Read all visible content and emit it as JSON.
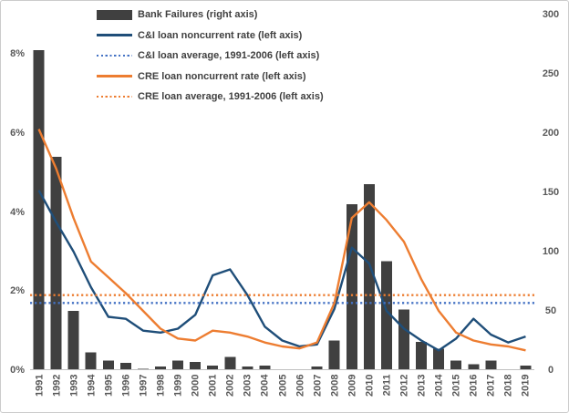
{
  "window": {
    "background": "#FFFFFF",
    "frame_border_color": "#CBCBCB",
    "axis_line_color": "#BFBFBF",
    "axis_text_color": "#595959",
    "legend_text_color": "#404040"
  },
  "legend": {
    "position": "top-left",
    "items": [
      {
        "id": "bank-failures",
        "label": "Bank Failures (right axis)",
        "swatch": "bar",
        "color": "#404040"
      },
      {
        "id": "ci-noncurrent",
        "label": "C&I loan noncurrent rate (left axis)",
        "swatch": "line",
        "color": "#1F4E79"
      },
      {
        "id": "ci-average",
        "label": "C&I loan average, 1991-2006 (left axis)",
        "swatch": "dotted",
        "color": "#4472C4"
      },
      {
        "id": "cre-noncurrent",
        "label": "CRE loan noncurrent rate (left axis)",
        "swatch": "line",
        "color": "#ED7D31"
      },
      {
        "id": "cre-average",
        "label": "CRE loan average, 1991-2006 (left axis)",
        "swatch": "dotted",
        "color": "#ED7D31"
      }
    ]
  },
  "chart_data": {
    "type": "combo (bar + line)",
    "title": "",
    "grid": false,
    "legend_position": "top-left",
    "categories": [
      "1991",
      "1992",
      "1993",
      "1994",
      "1995",
      "1996",
      "1997",
      "1998",
      "1999",
      "2000",
      "2001",
      "2002",
      "2003",
      "2004",
      "2005",
      "2006",
      "2007",
      "2008",
      "2009",
      "2010",
      "2011",
      "2012",
      "2013",
      "2014",
      "2015",
      "2016",
      "2017",
      "2018",
      "2019"
    ],
    "series": [
      {
        "id": "bank-failures",
        "name": "Bank Failures (right axis)",
        "type": "bar",
        "axis": "right",
        "color": "#404040",
        "values": [
          270,
          180,
          50,
          15,
          8,
          6,
          1,
          3,
          8,
          7,
          4,
          11,
          3,
          4,
          0,
          0,
          3,
          25,
          140,
          157,
          92,
          51,
          24,
          18,
          8,
          5,
          8,
          0,
          4
        ]
      },
      {
        "id": "ci-noncurrent",
        "name": "C&I loan noncurrent rate (left axis)",
        "type": "line",
        "style": "solid",
        "axis": "left",
        "color": "#1F4E79",
        "values": [
          4.55,
          3.75,
          3.0,
          2.1,
          1.35,
          1.3,
          1.0,
          0.95,
          1.05,
          1.4,
          2.4,
          2.55,
          1.9,
          1.1,
          0.75,
          0.6,
          0.65,
          1.55,
          3.1,
          2.7,
          1.5,
          1.05,
          0.75,
          0.5,
          0.8,
          1.3,
          0.9,
          0.7,
          0.85
        ]
      },
      {
        "id": "ci-average",
        "name": "C&I loan average, 1991-2006 (left axis)",
        "type": "line",
        "style": "dotted",
        "axis": "left",
        "color": "#4472C4",
        "constant": 1.7
      },
      {
        "id": "cre-noncurrent",
        "name": "CRE loan noncurrent rate (left axis)",
        "type": "line",
        "style": "solid",
        "axis": "left",
        "color": "#ED7D31",
        "values": [
          6.1,
          5.1,
          3.85,
          2.75,
          2.35,
          1.95,
          1.5,
          1.05,
          0.8,
          0.75,
          1.0,
          0.95,
          0.85,
          0.7,
          0.6,
          0.55,
          0.7,
          1.7,
          3.85,
          4.25,
          3.8,
          3.25,
          2.3,
          1.5,
          0.95,
          0.75,
          0.65,
          0.6,
          0.5
        ]
      },
      {
        "id": "cre-average",
        "name": "CRE loan average, 1991-2006 (left axis)",
        "type": "line",
        "style": "dotted",
        "axis": "left",
        "color": "#ED7D31",
        "constant": 1.9
      }
    ],
    "left_axis": {
      "unit": "%",
      "min": 0,
      "max": 9,
      "tick_values": [
        0,
        2,
        4,
        6,
        8
      ],
      "tick_labels": [
        "0%",
        "2%",
        "4%",
        "6%",
        "8%"
      ]
    },
    "right_axis": {
      "unit": "count",
      "min": 0,
      "max": 300,
      "tick_values": [
        0,
        50,
        100,
        150,
        200,
        250,
        300
      ],
      "tick_labels": [
        "0",
        "50",
        "100",
        "150",
        "200",
        "250",
        "300"
      ]
    }
  }
}
